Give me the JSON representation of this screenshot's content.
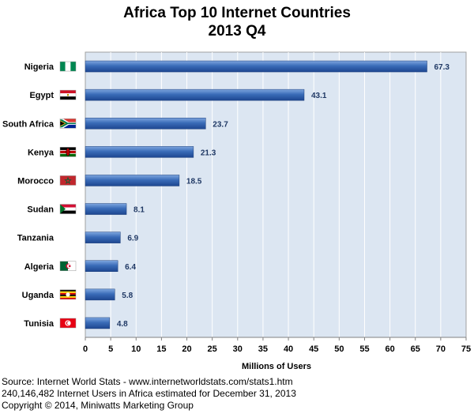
{
  "chart_data": {
    "type": "bar",
    "orientation": "horizontal",
    "title_lines": [
      "Africa Top 10 Internet Countries",
      "2013 Q4"
    ],
    "categories": [
      "Nigeria",
      "Egypt",
      "South Africa",
      "Kenya",
      "Morocco",
      "Sudan",
      "Tanzania",
      "Algeria",
      "Uganda",
      "Tunisia"
    ],
    "values": [
      67.3,
      43.1,
      23.7,
      21.3,
      18.5,
      8.1,
      6.9,
      6.4,
      5.8,
      4.8
    ],
    "value_labels": [
      "67.3",
      "43.1",
      "23.7",
      "21.3",
      "18.5",
      "8.1",
      "6.9",
      "6.4",
      "5.8",
      "4.8"
    ],
    "flags": [
      "nigeria-flag-icon",
      "egypt-flag-icon",
      "south-africa-flag-icon",
      "kenya-flag-icon",
      "morocco-flag-icon",
      "sudan-flag-icon",
      "tanzania-flag-icon",
      "algeria-flag-icon",
      "uganda-flag-icon",
      "tunisia-flag-icon"
    ],
    "xlabel": "Millions of Users",
    "ylabel": "",
    "xlim": [
      0,
      75
    ],
    "xticks": [
      0,
      5,
      10,
      15,
      20,
      25,
      30,
      35,
      40,
      45,
      50,
      55,
      60,
      65,
      70,
      75
    ],
    "grid": true,
    "bar_color": "#2e5fa8",
    "plot_bg": "#dce6f2",
    "gridline_color": "#ffffff"
  },
  "footer": {
    "source": "Source: Internet World Stats - www.internetworldstats.com/stats1.htm",
    "estimate": "240,146,482 Internet Users in Africa estimated for December 31, 2013",
    "copyright": "Copyright © 2014, Miniwatts Marketing Group"
  }
}
